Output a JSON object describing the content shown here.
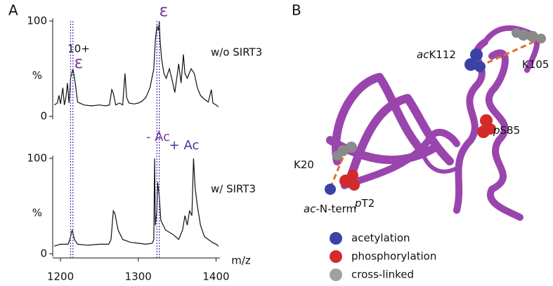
{
  "panel_labels": [
    "A",
    "B"
  ],
  "chart_data": [
    {
      "type": "line",
      "ylabel": "%",
      "ylim": [
        0,
        100
      ],
      "yticks": [
        0,
        100
      ],
      "xlim": [
        1190,
        1405
      ],
      "color": "#111111",
      "annotations": [
        "10+",
        "ε",
        "ε",
        "w/o SIRT3"
      ],
      "x": [
        1192,
        1196,
        1198,
        1200,
        1203,
        1205,
        1207,
        1209,
        1211,
        1213,
        1216,
        1219,
        1222,
        1230,
        1240,
        1250,
        1258,
        1263,
        1266,
        1268,
        1271,
        1276,
        1280,
        1283,
        1285,
        1288,
        1295,
        1300,
        1305,
        1310,
        1315,
        1320,
        1322,
        1324,
        1326,
        1327,
        1328,
        1330,
        1333,
        1336,
        1340,
        1343,
        1347,
        1352,
        1355,
        1358,
        1360,
        1363,
        1368,
        1372,
        1376,
        1380,
        1385,
        1390,
        1394,
        1396,
        1400,
        1403
      ],
      "values": [
        12,
        14,
        22,
        13,
        30,
        12,
        20,
        35,
        14,
        40,
        50,
        35,
        15,
        12,
        11,
        12,
        11,
        12,
        28,
        24,
        12,
        14,
        12,
        45,
        20,
        14,
        13,
        14,
        16,
        20,
        30,
        50,
        80,
        95,
        90,
        100,
        80,
        60,
        45,
        40,
        50,
        40,
        25,
        55,
        35,
        65,
        45,
        40,
        50,
        45,
        30,
        22,
        18,
        15,
        28,
        14,
        12,
        10
      ]
    },
    {
      "type": "line",
      "ylabel": "%",
      "xlabel": "m/z",
      "ylim": [
        0,
        100
      ],
      "yticks": [
        0,
        100
      ],
      "xlim": [
        1190,
        1405
      ],
      "xticks": [
        1200,
        1300,
        1400
      ],
      "color": "#111111",
      "annotations": [
        "- Ac",
        "+ Ac",
        "w/ SIRT3"
      ],
      "x": [
        1192,
        1200,
        1210,
        1213,
        1215,
        1218,
        1222,
        1235,
        1250,
        1262,
        1265,
        1268,
        1270,
        1274,
        1280,
        1290,
        1300,
        1310,
        1318,
        1320,
        1321,
        1322,
        1324,
        1325,
        1327,
        1329,
        1335,
        1345,
        1352,
        1357,
        1360,
        1363,
        1366,
        1369,
        1371,
        1373,
        1376,
        1380,
        1385,
        1390,
        1395,
        1400,
        1403
      ],
      "values": [
        8,
        10,
        10,
        18,
        25,
        15,
        10,
        9,
        10,
        10,
        15,
        45,
        42,
        25,
        15,
        12,
        11,
        10,
        11,
        15,
        100,
        30,
        45,
        75,
        60,
        35,
        25,
        20,
        15,
        25,
        40,
        30,
        45,
        40,
        100,
        70,
        50,
        30,
        18,
        15,
        12,
        10,
        8
      ]
    }
  ],
  "reference_lines_x": [
    1213,
    1216,
    1324,
    1327
  ],
  "reference_line_color": "#4b3fb0",
  "structure": {
    "labels": [
      [
        "ac",
        "K112"
      ],
      [
        "",
        "K105"
      ],
      [
        "p",
        "S85"
      ],
      [
        "",
        "K20"
      ],
      [
        "p",
        "T2"
      ],
      [
        "ac",
        "-N-term"
      ]
    ],
    "legend": [
      {
        "name": "acetylation",
        "color": "#3a43a5"
      },
      {
        "name": "phosphorylation",
        "color": "#d32a2a"
      },
      {
        "name": "cross-linked",
        "color": "#a0a0a0"
      }
    ]
  }
}
